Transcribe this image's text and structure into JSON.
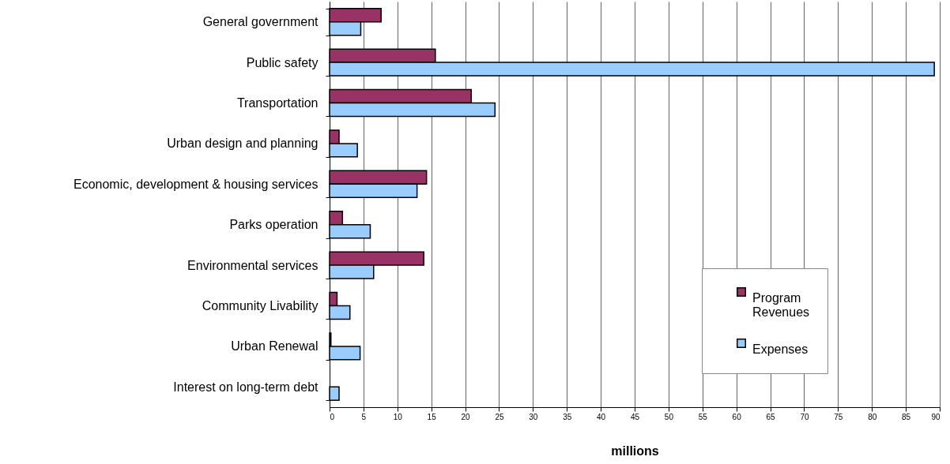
{
  "chart_data": {
    "type": "bar",
    "orientation": "horizontal",
    "xlabel": "millions",
    "categories": [
      "General government",
      "Public safety",
      "Transportation",
      "Urban design and planning",
      "Economic, development & housing services",
      "Parks operation",
      "Environmental services",
      "Community Livability",
      "Urban Renewal",
      "Interest on long-term debt"
    ],
    "series": [
      {
        "name": "Program Revenues",
        "color": "#993366",
        "values": [
          7.6,
          15.6,
          20.9,
          1.4,
          14.3,
          1.9,
          13.9,
          1.1,
          0.2,
          null
        ]
      },
      {
        "name": "Expenses",
        "color": "#99ccff",
        "values": [
          4.6,
          89.2,
          24.4,
          4.1,
          12.9,
          6.0,
          6.5,
          3.0,
          4.5,
          1.4
        ]
      }
    ],
    "xlim": [
      0,
      90
    ],
    "xticks": [
      0,
      5,
      10,
      15,
      20,
      25,
      30,
      35,
      40,
      45,
      50,
      55,
      60,
      65,
      70,
      75,
      80,
      85,
      90
    ],
    "grid": "x",
    "legend": "bottom right"
  }
}
